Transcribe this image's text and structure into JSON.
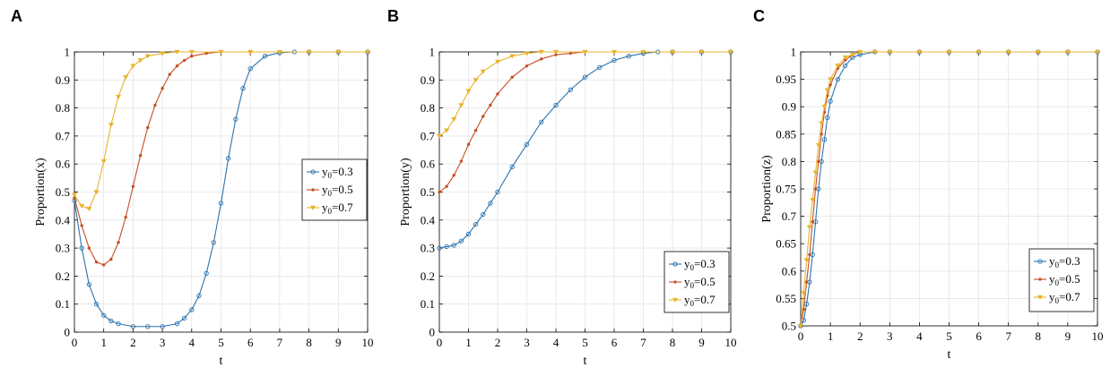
{
  "chart_data": [
    {
      "panel": "A",
      "type": "line",
      "xlabel": "t",
      "ylabel": "Proportion(x)",
      "xlim": [
        0,
        10
      ],
      "ylim": [
        0,
        1
      ],
      "xticks": [
        "0",
        "1",
        "2",
        "3",
        "4",
        "5",
        "6",
        "7",
        "8",
        "9",
        "10"
      ],
      "yticks": [
        "0",
        "0.1",
        "0.2",
        "0.3",
        "0.4",
        "0.5",
        "0.6",
        "0.7",
        "0.8",
        "0.9",
        "1"
      ],
      "grid": true,
      "legend_position": "right-middle",
      "series": [
        {
          "label_base": "y",
          "label_sub": "0",
          "label_value": "=0.3",
          "color": "#2d74b0",
          "marker": "circle",
          "x": [
            0,
            0.25,
            0.5,
            0.75,
            1,
            1.25,
            1.5,
            2,
            2.5,
            3,
            3.5,
            3.75,
            4,
            4.25,
            4.5,
            4.75,
            5,
            5.25,
            5.5,
            5.75,
            6,
            6.5,
            7,
            7.5,
            8,
            9,
            10
          ],
          "y": [
            0.47,
            0.3,
            0.17,
            0.1,
            0.06,
            0.04,
            0.03,
            0.02,
            0.02,
            0.02,
            0.03,
            0.05,
            0.08,
            0.13,
            0.21,
            0.32,
            0.46,
            0.62,
            0.76,
            0.87,
            0.94,
            0.985,
            0.997,
            1,
            1,
            1,
            1
          ]
        },
        {
          "label_base": "y",
          "label_sub": "0",
          "label_value": "=0.5",
          "color": "#c44e25",
          "marker": "dot",
          "x": [
            0,
            0.25,
            0.5,
            0.75,
            1,
            1.25,
            1.5,
            1.75,
            2,
            2.25,
            2.5,
            2.75,
            3,
            3.25,
            3.5,
            3.75,
            4,
            4.5,
            5,
            6,
            7,
            8,
            9,
            10
          ],
          "y": [
            0.48,
            0.38,
            0.3,
            0.25,
            0.24,
            0.26,
            0.32,
            0.41,
            0.52,
            0.63,
            0.73,
            0.81,
            0.87,
            0.92,
            0.95,
            0.97,
            0.985,
            0.995,
            1,
            1,
            1,
            1,
            1,
            1
          ]
        },
        {
          "label_base": "y",
          "label_sub": "0",
          "label_value": "=0.7",
          "color": "#e8b42c",
          "marker": "triangle",
          "x": [
            0,
            0.25,
            0.5,
            0.75,
            1,
            1.25,
            1.5,
            1.75,
            2,
            2.25,
            2.5,
            3,
            3.5,
            4,
            5,
            6,
            7,
            8,
            9,
            10
          ],
          "y": [
            0.49,
            0.45,
            0.44,
            0.5,
            0.61,
            0.74,
            0.84,
            0.91,
            0.95,
            0.97,
            0.985,
            0.995,
            1,
            1,
            1,
            1,
            1,
            1,
            1,
            1
          ]
        }
      ]
    },
    {
      "panel": "B",
      "type": "line",
      "xlabel": "t",
      "ylabel": "Proportion(y)",
      "xlim": [
        0,
        10
      ],
      "ylim": [
        0,
        1
      ],
      "xticks": [
        "0",
        "1",
        "2",
        "3",
        "4",
        "5",
        "6",
        "7",
        "8",
        "9",
        "10"
      ],
      "yticks": [
        "0",
        "0.1",
        "0.2",
        "0.3",
        "0.4",
        "0.5",
        "0.6",
        "0.7",
        "0.8",
        "0.9",
        "1"
      ],
      "grid": true,
      "legend_position": "bottom-right",
      "series": [
        {
          "label_base": "y",
          "label_sub": "0",
          "label_value": "=0.3",
          "color": "#2d74b0",
          "marker": "circle",
          "x": [
            0,
            0.25,
            0.5,
            0.75,
            1,
            1.25,
            1.5,
            1.75,
            2,
            2.5,
            3,
            3.5,
            4,
            4.5,
            5,
            5.5,
            6,
            6.5,
            7,
            7.5,
            8,
            9,
            10
          ],
          "y": [
            0.3,
            0.305,
            0.31,
            0.325,
            0.35,
            0.385,
            0.42,
            0.46,
            0.5,
            0.59,
            0.67,
            0.75,
            0.81,
            0.865,
            0.91,
            0.945,
            0.97,
            0.985,
            0.995,
            1,
            1,
            1,
            1
          ]
        },
        {
          "label_base": "y",
          "label_sub": "0",
          "label_value": "=0.5",
          "color": "#c44e25",
          "marker": "dot",
          "x": [
            0,
            0.25,
            0.5,
            0.75,
            1,
            1.25,
            1.5,
            1.75,
            2,
            2.5,
            3,
            3.5,
            4,
            4.5,
            5,
            6,
            7,
            8,
            9,
            10
          ],
          "y": [
            0.5,
            0.52,
            0.56,
            0.61,
            0.67,
            0.72,
            0.77,
            0.81,
            0.85,
            0.91,
            0.95,
            0.975,
            0.99,
            0.995,
            1,
            1,
            1,
            1,
            1,
            1
          ]
        },
        {
          "label_base": "y",
          "label_sub": "0",
          "label_value": "=0.7",
          "color": "#e8b42c",
          "marker": "triangle",
          "x": [
            0,
            0.25,
            0.5,
            0.75,
            1,
            1.25,
            1.5,
            2,
            2.5,
            3,
            3.5,
            4,
            5,
            6,
            7,
            8,
            9,
            10
          ],
          "y": [
            0.7,
            0.72,
            0.76,
            0.81,
            0.86,
            0.9,
            0.93,
            0.965,
            0.985,
            0.995,
            1,
            1,
            1,
            1,
            1,
            1,
            1,
            1
          ]
        }
      ]
    },
    {
      "panel": "C",
      "type": "line",
      "xlabel": "t",
      "ylabel": "Proportion(z)",
      "xlim": [
        0,
        10
      ],
      "ylim": [
        0.5,
        1
      ],
      "xticks": [
        "0",
        "1",
        "2",
        "3",
        "4",
        "5",
        "6",
        "7",
        "8",
        "9",
        "10"
      ],
      "yticks": [
        "0.5",
        "0.55",
        "0.6",
        "0.65",
        "0.7",
        "0.75",
        "0.8",
        "0.85",
        "0.9",
        "0.95",
        "1"
      ],
      "grid": true,
      "legend_position": "bottom-right",
      "series": [
        {
          "label_base": "y",
          "label_sub": "0",
          "label_value": "=0.3",
          "color": "#2d74b0",
          "marker": "circle",
          "x": [
            0,
            0.1,
            0.2,
            0.3,
            0.4,
            0.5,
            0.6,
            0.7,
            0.8,
            0.9,
            1,
            1.25,
            1.5,
            1.75,
            2,
            2.5,
            3,
            4,
            5,
            6,
            7,
            8,
            9,
            10
          ],
          "y": [
            0.5,
            0.51,
            0.54,
            0.58,
            0.63,
            0.69,
            0.75,
            0.8,
            0.84,
            0.88,
            0.91,
            0.95,
            0.975,
            0.99,
            0.995,
            1,
            1,
            1,
            1,
            1,
            1,
            1,
            1,
            1
          ]
        },
        {
          "label_base": "y",
          "label_sub": "0",
          "label_value": "=0.5",
          "color": "#c44e25",
          "marker": "dot",
          "x": [
            0,
            0.1,
            0.2,
            0.3,
            0.4,
            0.5,
            0.6,
            0.7,
            0.8,
            0.9,
            1,
            1.25,
            1.5,
            1.75,
            2,
            2.5,
            3,
            4,
            5,
            6,
            7,
            8,
            9,
            10
          ],
          "y": [
            0.5,
            0.53,
            0.58,
            0.63,
            0.69,
            0.75,
            0.8,
            0.85,
            0.89,
            0.92,
            0.94,
            0.97,
            0.985,
            0.995,
            1,
            1,
            1,
            1,
            1,
            1,
            1,
            1,
            1,
            1
          ]
        },
        {
          "label_base": "y",
          "label_sub": "0",
          "label_value": "=0.7",
          "color": "#e8b42c",
          "marker": "triangle",
          "x": [
            0,
            0.1,
            0.2,
            0.3,
            0.4,
            0.5,
            0.6,
            0.7,
            0.8,
            0.9,
            1,
            1.25,
            1.5,
            1.75,
            2,
            2.5,
            3,
            4,
            5,
            6,
            7,
            8,
            9,
            10
          ],
          "y": [
            0.5,
            0.56,
            0.62,
            0.68,
            0.73,
            0.78,
            0.83,
            0.87,
            0.9,
            0.93,
            0.95,
            0.975,
            0.99,
            0.995,
            1,
            1,
            1,
            1,
            1,
            1,
            1,
            1,
            1,
            1
          ]
        }
      ]
    }
  ]
}
